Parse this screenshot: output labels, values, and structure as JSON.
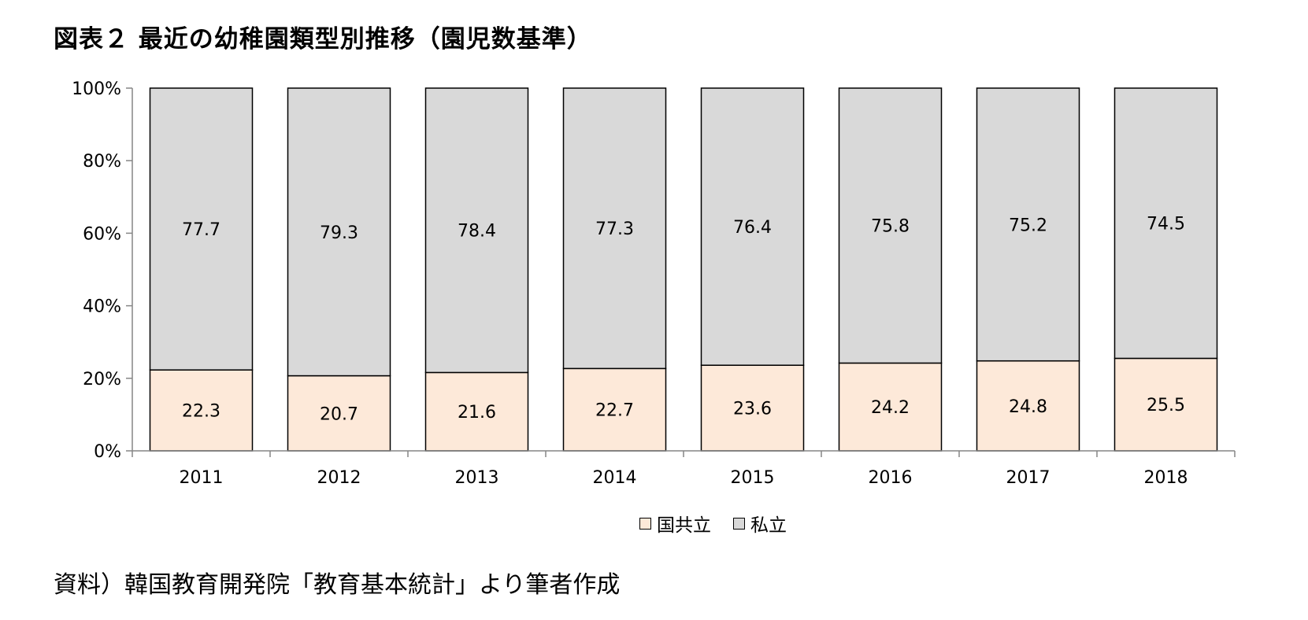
{
  "title": "図表２ 最近の幼稚園類型別推移（園児数基準）",
  "source": "資料）韓国教育開発院「教育基本統計」より筆者作成",
  "chart_data": {
    "type": "bar",
    "stacked": true,
    "categories": [
      "2011",
      "2012",
      "2013",
      "2014",
      "2015",
      "2016",
      "2017",
      "2018"
    ],
    "series": [
      {
        "name": "国共立",
        "color": "#fde9d9",
        "values": [
          22.3,
          20.7,
          21.6,
          22.7,
          23.6,
          24.2,
          24.8,
          25.5
        ]
      },
      {
        "name": "私立",
        "color": "#d9d9d9",
        "values": [
          77.7,
          79.3,
          78.4,
          77.3,
          76.4,
          75.8,
          75.2,
          74.5
        ]
      }
    ],
    "yticks": [
      "0%",
      "20%",
      "40%",
      "60%",
      "80%",
      "100%"
    ],
    "ylim": [
      0,
      100
    ],
    "legend_position": "bottom",
    "grid": false
  }
}
